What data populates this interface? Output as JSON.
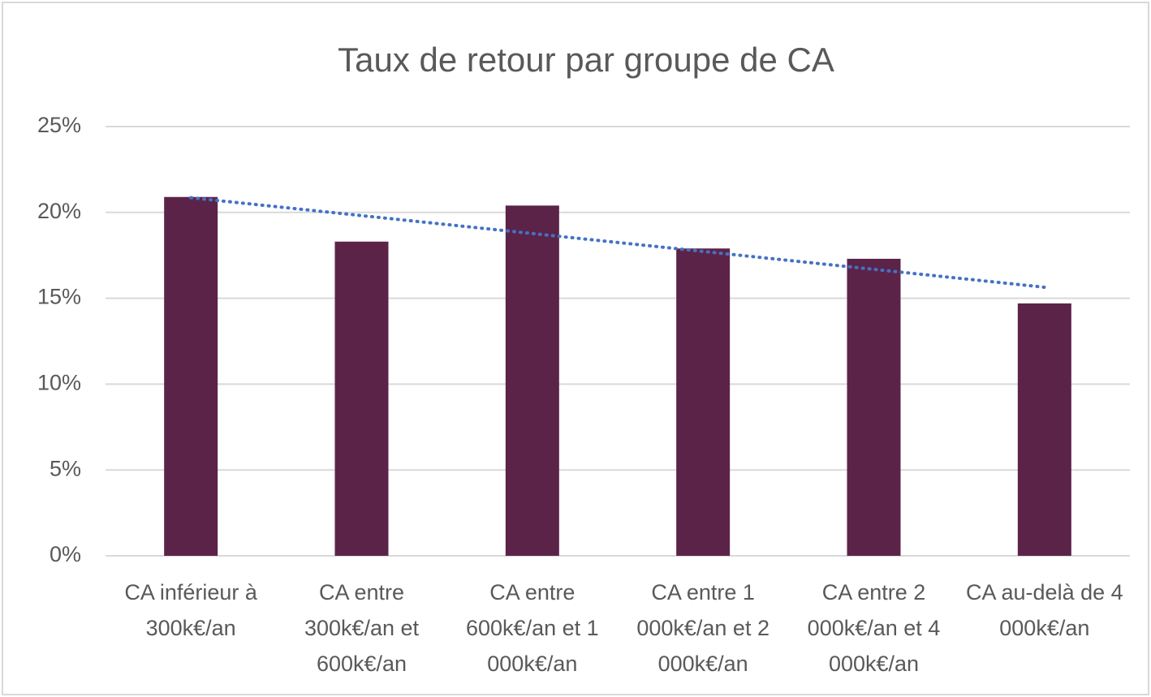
{
  "chart_data": {
    "type": "bar",
    "title": "Taux de retour par groupe de CA",
    "categories": [
      "CA inférieur à 300k€/an",
      "CA entre 300k€/an et 600k€/an",
      "CA entre 600k€/an et 1 000k€/an",
      "CA entre 1 000k€/an et 2 000k€/an",
      "CA entre 2 000k€/an et 4 000k€/an",
      "CA au-delà de 4 000k€/an"
    ],
    "values": [
      20.9,
      18.3,
      20.4,
      17.9,
      17.3,
      14.7
    ],
    "color": "#5c2349",
    "ylim": [
      0,
      25
    ],
    "yticks": [
      {
        "value": 0,
        "label": "0%"
      },
      {
        "value": 5,
        "label": "5%"
      },
      {
        "value": 10,
        "label": "10%"
      },
      {
        "value": 15,
        "label": "15%"
      },
      {
        "value": 20,
        "label": "20%"
      },
      {
        "value": 25,
        "label": "25%"
      }
    ],
    "grid": true,
    "trendline": "linear",
    "trendline_color": "#4472c4"
  }
}
